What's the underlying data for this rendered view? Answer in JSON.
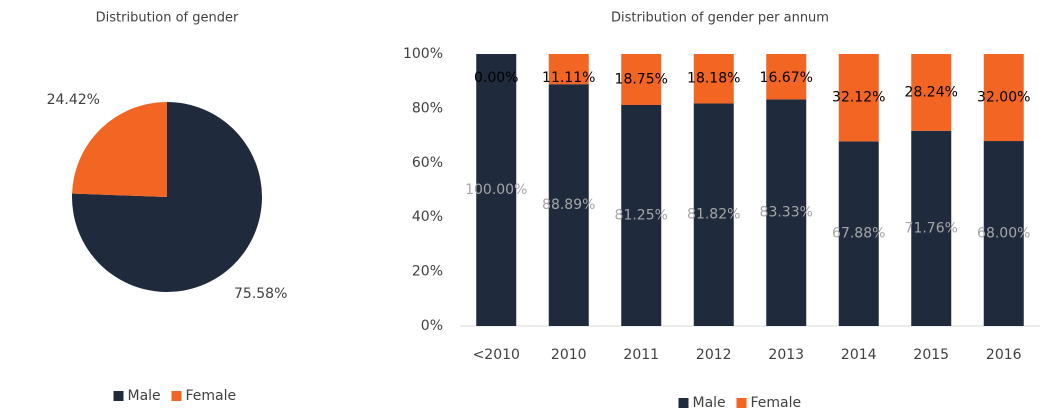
{
  "chart_data": [
    {
      "type": "pie",
      "title": "Distribution of gender",
      "categories": [
        "Male",
        "Female"
      ],
      "values": [
        75.58,
        24.42
      ],
      "value_labels": [
        "75.58%",
        "24.42%"
      ],
      "colors": [
        "#1f2a3c",
        "#f26522"
      ],
      "legend": "bottom"
    },
    {
      "type": "stacked_bar",
      "title": "Distribution of gender per annum",
      "categories": [
        "<2010",
        "2010",
        "2011",
        "2012",
        "2013",
        "2014",
        "2015",
        "2016"
      ],
      "series": [
        {
          "name": "Male",
          "color": "#1f2a3c",
          "values": [
            100,
            88.89,
            81.25,
            81.82,
            83.33,
            67.88,
            71.76,
            68
          ],
          "value_labels": [
            "100.00%",
            "88.89%",
            "81.25%",
            "81.82%",
            "83.33%",
            "67.88%",
            "71.76%",
            "68.00%"
          ]
        },
        {
          "name": "Female",
          "color": "#f26522",
          "values": [
            0,
            11.11,
            18.75,
            18.18,
            16.67,
            32.12,
            28.24,
            32
          ],
          "value_labels": [
            "0.00%",
            "11.11%",
            "18.75%",
            "18.18%",
            "16.67%",
            "32.12%",
            "28.24%",
            "32.00%"
          ]
        }
      ],
      "ylim": [
        0,
        100
      ],
      "yticks": [
        {
          "value": 0,
          "label": "0%"
        },
        {
          "value": 20,
          "label": "20%"
        },
        {
          "value": 40,
          "label": "40%"
        },
        {
          "value": 60,
          "label": "60%"
        },
        {
          "value": 80,
          "label": "80%"
        },
        {
          "value": 100,
          "label": "100%"
        }
      ],
      "legend": "bottom"
    }
  ]
}
